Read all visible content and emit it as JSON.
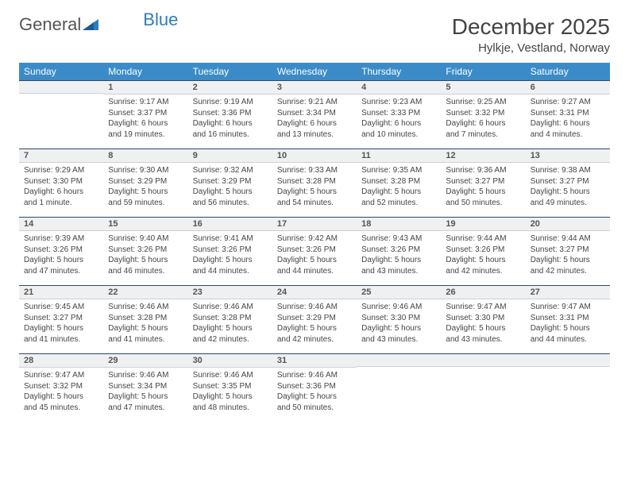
{
  "logo": {
    "text1": "General",
    "text2": "Blue"
  },
  "title": "December 2025",
  "location": "Hylkje, Vestland, Norway",
  "colors": {
    "header_bg": "#3b8bc8",
    "header_text": "#ffffff",
    "dayrow_bg": "#eff0f1",
    "dayrow_border_top": "#2d4a6b",
    "text": "#454545",
    "logo_blue": "#2d7dc0"
  },
  "day_headers": [
    "Sunday",
    "Monday",
    "Tuesday",
    "Wednesday",
    "Thursday",
    "Friday",
    "Saturday"
  ],
  "weeks": [
    [
      {
        "n": "",
        "t": ""
      },
      {
        "n": "1",
        "t": "Sunrise: 9:17 AM\nSunset: 3:37 PM\nDaylight: 6 hours and 19 minutes."
      },
      {
        "n": "2",
        "t": "Sunrise: 9:19 AM\nSunset: 3:36 PM\nDaylight: 6 hours and 16 minutes."
      },
      {
        "n": "3",
        "t": "Sunrise: 9:21 AM\nSunset: 3:34 PM\nDaylight: 6 hours and 13 minutes."
      },
      {
        "n": "4",
        "t": "Sunrise: 9:23 AM\nSunset: 3:33 PM\nDaylight: 6 hours and 10 minutes."
      },
      {
        "n": "5",
        "t": "Sunrise: 9:25 AM\nSunset: 3:32 PM\nDaylight: 6 hours and 7 minutes."
      },
      {
        "n": "6",
        "t": "Sunrise: 9:27 AM\nSunset: 3:31 PM\nDaylight: 6 hours and 4 minutes."
      }
    ],
    [
      {
        "n": "7",
        "t": "Sunrise: 9:29 AM\nSunset: 3:30 PM\nDaylight: 6 hours and 1 minute."
      },
      {
        "n": "8",
        "t": "Sunrise: 9:30 AM\nSunset: 3:29 PM\nDaylight: 5 hours and 59 minutes."
      },
      {
        "n": "9",
        "t": "Sunrise: 9:32 AM\nSunset: 3:29 PM\nDaylight: 5 hours and 56 minutes."
      },
      {
        "n": "10",
        "t": "Sunrise: 9:33 AM\nSunset: 3:28 PM\nDaylight: 5 hours and 54 minutes."
      },
      {
        "n": "11",
        "t": "Sunrise: 9:35 AM\nSunset: 3:28 PM\nDaylight: 5 hours and 52 minutes."
      },
      {
        "n": "12",
        "t": "Sunrise: 9:36 AM\nSunset: 3:27 PM\nDaylight: 5 hours and 50 minutes."
      },
      {
        "n": "13",
        "t": "Sunrise: 9:38 AM\nSunset: 3:27 PM\nDaylight: 5 hours and 49 minutes."
      }
    ],
    [
      {
        "n": "14",
        "t": "Sunrise: 9:39 AM\nSunset: 3:26 PM\nDaylight: 5 hours and 47 minutes."
      },
      {
        "n": "15",
        "t": "Sunrise: 9:40 AM\nSunset: 3:26 PM\nDaylight: 5 hours and 46 minutes."
      },
      {
        "n": "16",
        "t": "Sunrise: 9:41 AM\nSunset: 3:26 PM\nDaylight: 5 hours and 44 minutes."
      },
      {
        "n": "17",
        "t": "Sunrise: 9:42 AM\nSunset: 3:26 PM\nDaylight: 5 hours and 44 minutes."
      },
      {
        "n": "18",
        "t": "Sunrise: 9:43 AM\nSunset: 3:26 PM\nDaylight: 5 hours and 43 minutes."
      },
      {
        "n": "19",
        "t": "Sunrise: 9:44 AM\nSunset: 3:26 PM\nDaylight: 5 hours and 42 minutes."
      },
      {
        "n": "20",
        "t": "Sunrise: 9:44 AM\nSunset: 3:27 PM\nDaylight: 5 hours and 42 minutes."
      }
    ],
    [
      {
        "n": "21",
        "t": "Sunrise: 9:45 AM\nSunset: 3:27 PM\nDaylight: 5 hours and 41 minutes."
      },
      {
        "n": "22",
        "t": "Sunrise: 9:46 AM\nSunset: 3:28 PM\nDaylight: 5 hours and 41 minutes."
      },
      {
        "n": "23",
        "t": "Sunrise: 9:46 AM\nSunset: 3:28 PM\nDaylight: 5 hours and 42 minutes."
      },
      {
        "n": "24",
        "t": "Sunrise: 9:46 AM\nSunset: 3:29 PM\nDaylight: 5 hours and 42 minutes."
      },
      {
        "n": "25",
        "t": "Sunrise: 9:46 AM\nSunset: 3:30 PM\nDaylight: 5 hours and 43 minutes."
      },
      {
        "n": "26",
        "t": "Sunrise: 9:47 AM\nSunset: 3:30 PM\nDaylight: 5 hours and 43 minutes."
      },
      {
        "n": "27",
        "t": "Sunrise: 9:47 AM\nSunset: 3:31 PM\nDaylight: 5 hours and 44 minutes."
      }
    ],
    [
      {
        "n": "28",
        "t": "Sunrise: 9:47 AM\nSunset: 3:32 PM\nDaylight: 5 hours and 45 minutes."
      },
      {
        "n": "29",
        "t": "Sunrise: 9:46 AM\nSunset: 3:34 PM\nDaylight: 5 hours and 47 minutes."
      },
      {
        "n": "30",
        "t": "Sunrise: 9:46 AM\nSunset: 3:35 PM\nDaylight: 5 hours and 48 minutes."
      },
      {
        "n": "31",
        "t": "Sunrise: 9:46 AM\nSunset: 3:36 PM\nDaylight: 5 hours and 50 minutes."
      },
      {
        "n": "",
        "t": ""
      },
      {
        "n": "",
        "t": ""
      },
      {
        "n": "",
        "t": ""
      }
    ]
  ]
}
